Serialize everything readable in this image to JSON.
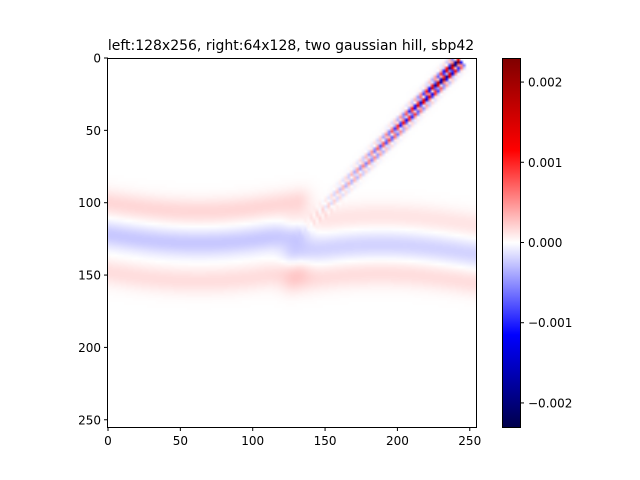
{
  "chart_data": {
    "type": "heatmap",
    "title": "left:128x256, right:64x128, two gaussian hill, sbp42",
    "xlabel": "",
    "ylabel": "",
    "xlim": [
      0,
      255
    ],
    "ylim": [
      255,
      0
    ],
    "x_ticks": [
      0,
      50,
      100,
      150,
      200,
      250
    ],
    "y_ticks": [
      0,
      50,
      100,
      150,
      200,
      250
    ],
    "x_tick_labels": [
      "0",
      "50",
      "100",
      "150",
      "200",
      "250"
    ],
    "y_tick_labels": [
      "0",
      "50",
      "100",
      "150",
      "200",
      "250"
    ],
    "colormap": "seismic",
    "colorbar": {
      "vmin": -0.0023,
      "vmax": 0.0023,
      "ticks": [
        -0.002,
        -0.001,
        0.0,
        0.001,
        0.002
      ],
      "tick_labels": [
        "−0.002",
        "−0.001",
        "0.000",
        "0.001",
        "0.002"
      ]
    },
    "features": [
      {
        "kind": "diagonal-oscillation",
        "from": [
          128,
          128
        ],
        "to": [
          240,
          5
        ],
        "peak": 0.0022
      },
      {
        "kind": "band",
        "x_range": [
          0,
          130
        ],
        "y_center": 100,
        "value": 0.00018
      },
      {
        "kind": "band",
        "x_range": [
          0,
          130
        ],
        "y_center": 122,
        "value": -0.00025
      },
      {
        "kind": "band",
        "x_range": [
          0,
          130
        ],
        "y_center": 148,
        "value": 0.00015
      },
      {
        "kind": "band",
        "x_range": [
          130,
          255
        ],
        "y_center": 115,
        "value": 0.00012
      },
      {
        "kind": "band",
        "x_range": [
          130,
          255
        ],
        "y_center": 135,
        "value": -0.0002
      },
      {
        "kind": "band",
        "x_range": [
          130,
          255
        ],
        "y_center": 155,
        "value": 0.00015
      }
    ]
  }
}
